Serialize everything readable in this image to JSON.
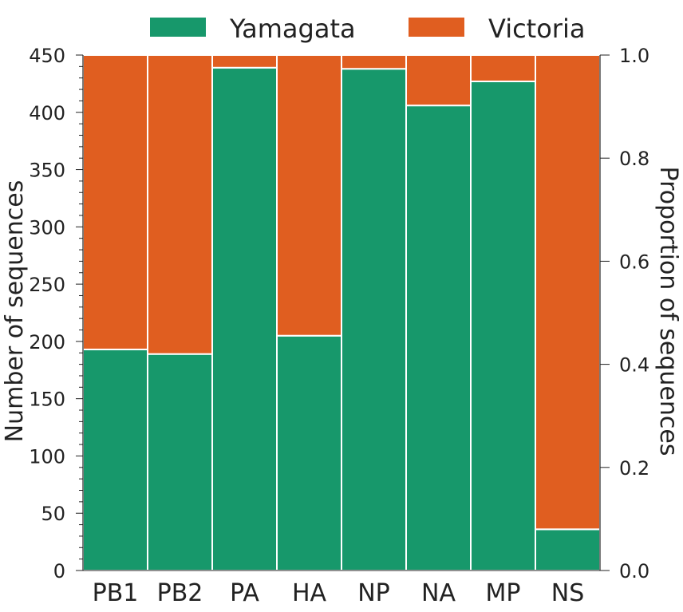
{
  "chart_data": {
    "type": "bar",
    "stacked": true,
    "categories": [
      "PB1",
      "PB2",
      "PA",
      "HA",
      "NP",
      "NA",
      "MP",
      "NS"
    ],
    "series": [
      {
        "name": "Yamagata",
        "color": "#17986B",
        "values": [
          193,
          189,
          439,
          205,
          438,
          406,
          427,
          36
        ]
      },
      {
        "name": "Victoria",
        "color": "#E05E20",
        "values": [
          257,
          261,
          11,
          245,
          12,
          44,
          23,
          414
        ]
      }
    ],
    "xlabel": "",
    "ylabel": "Number of sequences",
    "ylabel_right": "Proportion of sequences",
    "ylim": [
      0,
      450
    ],
    "ylim_right": [
      0,
      1.0
    ],
    "yticks": [
      "0",
      "50",
      "100",
      "150",
      "200",
      "250",
      "300",
      "350",
      "400",
      "450"
    ],
    "yticks_right": [
      "0.0",
      "0.2",
      "0.4",
      "0.6",
      "0.8",
      "1.0"
    ],
    "legend_position": "top-center",
    "grid": false
  }
}
